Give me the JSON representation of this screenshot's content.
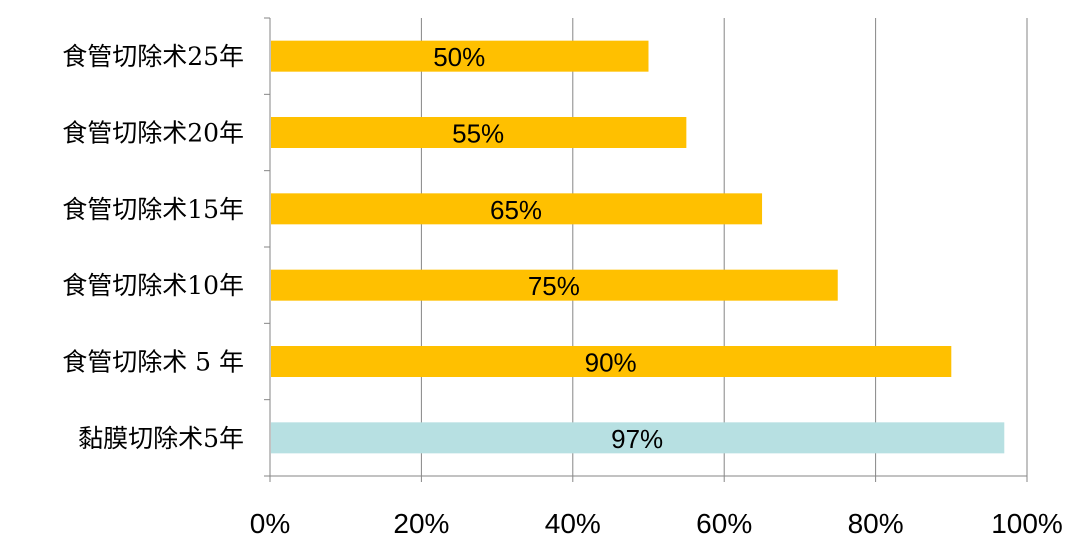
{
  "chart_data": {
    "type": "bar",
    "orientation": "horizontal",
    "categories": [
      "食管切除术25年",
      "食管切除术20年",
      "食管切除术15年",
      "食管切除术10年",
      "食管切除术 5 年",
      "黏膜切除术5年"
    ],
    "values": [
      50,
      55,
      65,
      75,
      90,
      97
    ],
    "data_labels": [
      "50%",
      "55%",
      "65%",
      "75%",
      "90%",
      "97%"
    ],
    "bar_colors": [
      "#FFC000",
      "#FFC000",
      "#FFC000",
      "#FFC000",
      "#FFC000",
      "#B7E0E2"
    ],
    "xlim": [
      0,
      100
    ],
    "xticks": [
      "0%",
      "20%",
      "40%",
      "60%",
      "80%",
      "100%"
    ],
    "grid": true,
    "legend": "none",
    "title": "",
    "xlabel": "",
    "ylabel": ""
  }
}
